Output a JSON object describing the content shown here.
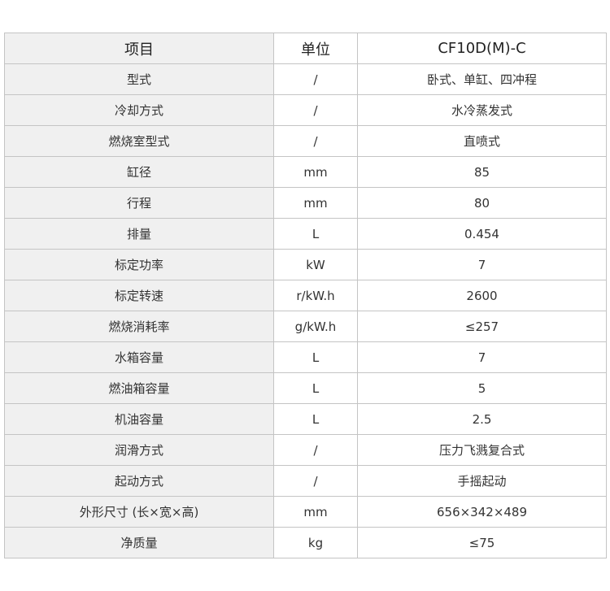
{
  "header": [
    "项目",
    "单位",
    "CF10D(M)-C"
  ],
  "rows": [
    [
      "型式",
      "/",
      "卧式、单缸、四冲程"
    ],
    [
      "冷却方式",
      "/",
      "水冷蒸发式"
    ],
    [
      "燃烧室型式",
      "/",
      "直喷式"
    ],
    [
      "缸径",
      "mm",
      "85"
    ],
    [
      "行程",
      "mm",
      "80"
    ],
    [
      "排量",
      "L",
      "0.454"
    ],
    [
      "标定功率",
      "kW",
      "7"
    ],
    [
      "标定转速",
      "r/kW.h",
      "2600"
    ],
    [
      "燃烧消耗率",
      "g/kW.h",
      "≤257"
    ],
    [
      "水箱容量",
      "L",
      "7"
    ],
    [
      "燃油箱容量",
      "L",
      "5"
    ],
    [
      "机油容量",
      "L",
      "2.5"
    ],
    [
      "润滑方式",
      "/",
      "压力飞溅复合式"
    ],
    [
      "起动方式",
      "/",
      "手摇起动"
    ],
    [
      "外形尺寸 (长×宽×高)",
      "mm",
      "656×342×489"
    ],
    [
      "净质量",
      "kg",
      "≤75"
    ]
  ]
}
